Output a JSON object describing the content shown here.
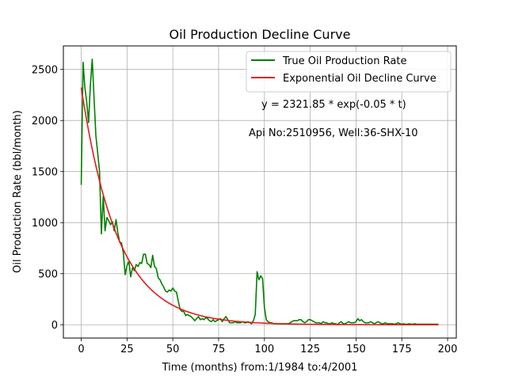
{
  "chart_data": {
    "type": "line",
    "title": "Oil Production Decline Curve",
    "xlabel": "Time (months) from:1/1984 to:4/2001",
    "ylabel": "Oil Production Rate (bbl/month)",
    "xlim": [
      -9.75,
      204.75
    ],
    "ylim": [
      -130,
      2730
    ],
    "xticks": [
      0,
      25,
      50,
      75,
      100,
      125,
      150,
      175,
      200
    ],
    "yticks": [
      0,
      500,
      1000,
      1500,
      2000,
      2500
    ],
    "grid": true,
    "legend_position": "top-right",
    "annotations": [
      "y = 2321.85 * exp(-0.05 * t)",
      "Api No:2510956, Well:36-SHX-10"
    ],
    "series": [
      {
        "name": "True Oil Production Rate",
        "color": "#008000",
        "points": [
          [
            0,
            1370
          ],
          [
            1,
            2570
          ],
          [
            2,
            2320
          ],
          [
            3,
            2180
          ],
          [
            4,
            1980
          ],
          [
            5,
            2350
          ],
          [
            6,
            2600
          ],
          [
            7,
            2220
          ],
          [
            8,
            1850
          ],
          [
            9,
            1680
          ],
          [
            10,
            1500
          ],
          [
            11,
            890
          ],
          [
            12,
            1260
          ],
          [
            13,
            920
          ],
          [
            14,
            1050
          ],
          [
            15,
            1020
          ],
          [
            16,
            980
          ],
          [
            17,
            1010
          ],
          [
            18,
            920
          ],
          [
            19,
            1030
          ],
          [
            20,
            900
          ],
          [
            21,
            810
          ],
          [
            22,
            800
          ],
          [
            23,
            700
          ],
          [
            24,
            490
          ],
          [
            25,
            580
          ],
          [
            26,
            620
          ],
          [
            27,
            470
          ],
          [
            28,
            560
          ],
          [
            29,
            530
          ],
          [
            30,
            590
          ],
          [
            31,
            570
          ],
          [
            32,
            610
          ],
          [
            33,
            600
          ],
          [
            34,
            690
          ],
          [
            35,
            690
          ],
          [
            36,
            600
          ],
          [
            37,
            590
          ],
          [
            38,
            560
          ],
          [
            39,
            680
          ],
          [
            40,
            570
          ],
          [
            41,
            550
          ],
          [
            42,
            460
          ],
          [
            43,
            440
          ],
          [
            44,
            400
          ],
          [
            45,
            370
          ],
          [
            46,
            330
          ],
          [
            47,
            320
          ],
          [
            48,
            340
          ],
          [
            49,
            330
          ],
          [
            50,
            360
          ],
          [
            51,
            330
          ],
          [
            52,
            320
          ],
          [
            53,
            230
          ],
          [
            54,
            150
          ],
          [
            55,
            130
          ],
          [
            56,
            130
          ],
          [
            57,
            90
          ],
          [
            58,
            100
          ],
          [
            59,
            90
          ],
          [
            60,
            80
          ],
          [
            61,
            60
          ],
          [
            62,
            40
          ],
          [
            63,
            60
          ],
          [
            64,
            80
          ],
          [
            65,
            50
          ],
          [
            66,
            60
          ],
          [
            67,
            50
          ],
          [
            68,
            70
          ],
          [
            69,
            60
          ],
          [
            70,
            40
          ],
          [
            71,
            30
          ],
          [
            72,
            50
          ],
          [
            73,
            30
          ],
          [
            74,
            40
          ],
          [
            75,
            50
          ],
          [
            76,
            60
          ],
          [
            77,
            30
          ],
          [
            78,
            60
          ],
          [
            79,
            80
          ],
          [
            80,
            50
          ],
          [
            81,
            20
          ],
          [
            82,
            20
          ],
          [
            83,
            20
          ],
          [
            84,
            30
          ],
          [
            85,
            20
          ],
          [
            86,
            20
          ],
          [
            87,
            20
          ],
          [
            88,
            30
          ],
          [
            89,
            20
          ],
          [
            90,
            20
          ],
          [
            91,
            30
          ],
          [
            92,
            20
          ],
          [
            93,
            10
          ],
          [
            94,
            40
          ],
          [
            95,
            100
          ],
          [
            96,
            520
          ],
          [
            97,
            440
          ],
          [
            98,
            480
          ],
          [
            99,
            450
          ],
          [
            100,
            170
          ],
          [
            101,
            50
          ],
          [
            102,
            30
          ],
          [
            103,
            20
          ],
          [
            104,
            20
          ],
          [
            105,
            10
          ],
          [
            106,
            10
          ],
          [
            107,
            10
          ],
          [
            108,
            10
          ],
          [
            109,
            10
          ],
          [
            110,
            10
          ],
          [
            111,
            10
          ],
          [
            112,
            10
          ],
          [
            113,
            10
          ],
          [
            114,
            20
          ],
          [
            115,
            30
          ],
          [
            116,
            40
          ],
          [
            117,
            40
          ],
          [
            118,
            40
          ],
          [
            119,
            50
          ],
          [
            120,
            50
          ],
          [
            121,
            30
          ],
          [
            122,
            20
          ],
          [
            123,
            30
          ],
          [
            124,
            50
          ],
          [
            125,
            50
          ],
          [
            126,
            40
          ],
          [
            127,
            30
          ],
          [
            128,
            20
          ],
          [
            129,
            20
          ],
          [
            130,
            20
          ],
          [
            131,
            10
          ],
          [
            132,
            30
          ],
          [
            133,
            20
          ],
          [
            134,
            20
          ],
          [
            135,
            10
          ],
          [
            136,
            10
          ],
          [
            137,
            20
          ],
          [
            138,
            10
          ],
          [
            139,
            10
          ],
          [
            140,
            0
          ],
          [
            141,
            20
          ],
          [
            142,
            30
          ],
          [
            143,
            10
          ],
          [
            144,
            10
          ],
          [
            145,
            20
          ],
          [
            146,
            30
          ],
          [
            147,
            20
          ],
          [
            148,
            20
          ],
          [
            149,
            20
          ],
          [
            150,
            30
          ],
          [
            151,
            60
          ],
          [
            152,
            40
          ],
          [
            153,
            50
          ],
          [
            154,
            30
          ],
          [
            155,
            20
          ],
          [
            156,
            20
          ],
          [
            157,
            20
          ],
          [
            158,
            30
          ],
          [
            159,
            20
          ],
          [
            160,
            10
          ],
          [
            161,
            20
          ],
          [
            162,
            30
          ],
          [
            163,
            20
          ],
          [
            164,
            10
          ],
          [
            165,
            10
          ],
          [
            166,
            20
          ],
          [
            167,
            10
          ],
          [
            168,
            10
          ],
          [
            169,
            10
          ],
          [
            170,
            10
          ],
          [
            171,
            5
          ],
          [
            172,
            10
          ],
          [
            173,
            20
          ],
          [
            174,
            10
          ],
          [
            175,
            5
          ],
          [
            176,
            10
          ],
          [
            177,
            5
          ],
          [
            178,
            5
          ],
          [
            179,
            10
          ],
          [
            180,
            5
          ],
          [
            181,
            5
          ],
          [
            182,
            10
          ],
          [
            183,
            5
          ],
          [
            184,
            5
          ],
          [
            185,
            5
          ],
          [
            186,
            5
          ],
          [
            187,
            5
          ],
          [
            188,
            5
          ],
          [
            189,
            5
          ],
          [
            190,
            5
          ],
          [
            191,
            5
          ],
          [
            192,
            5
          ],
          [
            193,
            5
          ],
          [
            194,
            5
          ],
          [
            195,
            5
          ]
        ]
      },
      {
        "name": "Exponential Oil Decline Curve",
        "color": "#e41a1c",
        "formula": {
          "a": 2321.85,
          "b": -0.05,
          "t_start": 0,
          "t_end": 195
        }
      }
    ]
  }
}
